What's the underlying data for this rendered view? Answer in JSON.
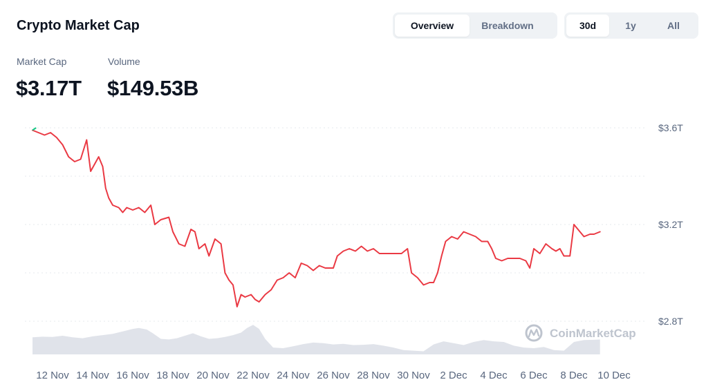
{
  "header": {
    "title": "Crypto Market Cap",
    "view_tabs": [
      {
        "label": "Overview",
        "active": true
      },
      {
        "label": "Breakdown",
        "active": false
      }
    ],
    "range_tabs": [
      {
        "label": "30d",
        "active": true
      },
      {
        "label": "1y",
        "active": false
      },
      {
        "label": "All",
        "active": false
      }
    ]
  },
  "stats": {
    "market_cap_label": "Market Cap",
    "market_cap_value": "$3.17T",
    "volume_label": "Volume",
    "volume_value": "$149.53B"
  },
  "watermark": {
    "text": "CoinMarketCap",
    "icon": "coinmarketcap-logo-icon"
  },
  "colors": {
    "line": "#ea3943",
    "line_start": "#16c784",
    "volume_fill": "#e0e3ea",
    "grid": "#e6e8ec",
    "accent_text": "#0d1421"
  },
  "chart_data": {
    "type": "line",
    "title": "",
    "xlabel": "",
    "ylabel": "",
    "x_ticks": [
      "12 Nov",
      "14 Nov",
      "16 Nov",
      "18 Nov",
      "20 Nov",
      "22 Nov",
      "24 Nov",
      "26 Nov",
      "28 Nov",
      "30 Nov",
      "2 Dec",
      "4 Dec",
      "6 Dec",
      "8 Dec",
      "10 Dec"
    ],
    "y_ticks": [
      "$3.6T",
      "$3.2T",
      "$2.8T"
    ],
    "ylim": [
      2.8,
      3.6
    ],
    "x_start": "11 Nov",
    "x_end": "11 Dec",
    "grid": true,
    "series": [
      {
        "values_trillion_usd": [
          [
            0.0,
            3.59
          ],
          [
            0.3,
            3.58
          ],
          [
            0.6,
            3.57
          ],
          [
            0.9,
            3.58
          ],
          [
            1.2,
            3.56
          ],
          [
            1.5,
            3.53
          ],
          [
            1.8,
            3.48
          ],
          [
            2.1,
            3.46
          ],
          [
            2.4,
            3.47
          ],
          [
            2.7,
            3.55
          ],
          [
            2.9,
            3.42
          ],
          [
            3.1,
            3.45
          ],
          [
            3.3,
            3.48
          ],
          [
            3.5,
            3.44
          ],
          [
            3.65,
            3.35
          ],
          [
            3.8,
            3.31
          ],
          [
            4.0,
            3.28
          ],
          [
            4.3,
            3.27
          ],
          [
            4.5,
            3.25
          ],
          [
            4.7,
            3.27
          ],
          [
            5.0,
            3.26
          ],
          [
            5.3,
            3.27
          ],
          [
            5.6,
            3.25
          ],
          [
            5.9,
            3.28
          ],
          [
            6.1,
            3.2
          ],
          [
            6.4,
            3.22
          ],
          [
            6.8,
            3.23
          ],
          [
            7.0,
            3.17
          ],
          [
            7.3,
            3.12
          ],
          [
            7.6,
            3.11
          ],
          [
            7.9,
            3.18
          ],
          [
            8.1,
            3.17
          ],
          [
            8.3,
            3.1
          ],
          [
            8.6,
            3.12
          ],
          [
            8.8,
            3.07
          ],
          [
            9.1,
            3.14
          ],
          [
            9.4,
            3.12
          ],
          [
            9.6,
            3.0
          ],
          [
            9.8,
            2.97
          ],
          [
            10.0,
            2.95
          ],
          [
            10.2,
            2.86
          ],
          [
            10.4,
            2.91
          ],
          [
            10.6,
            2.9
          ],
          [
            10.9,
            2.91
          ],
          [
            11.1,
            2.89
          ],
          [
            11.3,
            2.88
          ],
          [
            11.6,
            2.91
          ],
          [
            11.9,
            2.93
          ],
          [
            12.2,
            2.97
          ],
          [
            12.5,
            2.98
          ],
          [
            12.8,
            3.0
          ],
          [
            13.1,
            2.98
          ],
          [
            13.4,
            3.04
          ],
          [
            13.7,
            3.03
          ],
          [
            14.0,
            3.01
          ],
          [
            14.3,
            3.03
          ],
          [
            14.6,
            3.02
          ],
          [
            15.0,
            3.02
          ],
          [
            15.2,
            3.07
          ],
          [
            15.5,
            3.09
          ],
          [
            15.8,
            3.1
          ],
          [
            16.1,
            3.09
          ],
          [
            16.4,
            3.11
          ],
          [
            16.7,
            3.09
          ],
          [
            17.0,
            3.1
          ],
          [
            17.3,
            3.08
          ],
          [
            17.6,
            3.08
          ],
          [
            18.0,
            3.08
          ],
          [
            18.4,
            3.08
          ],
          [
            18.7,
            3.1
          ],
          [
            18.9,
            3.0
          ],
          [
            19.2,
            2.98
          ],
          [
            19.5,
            2.95
          ],
          [
            19.8,
            2.96
          ],
          [
            20.0,
            2.96
          ],
          [
            20.2,
            3.0
          ],
          [
            20.4,
            3.07
          ],
          [
            20.6,
            3.13
          ],
          [
            20.9,
            3.15
          ],
          [
            21.2,
            3.14
          ],
          [
            21.5,
            3.17
          ],
          [
            21.8,
            3.16
          ],
          [
            22.1,
            3.15
          ],
          [
            22.4,
            3.13
          ],
          [
            22.7,
            3.13
          ],
          [
            22.9,
            3.1
          ],
          [
            23.1,
            3.06
          ],
          [
            23.4,
            3.05
          ],
          [
            23.7,
            3.06
          ],
          [
            24.0,
            3.06
          ],
          [
            24.3,
            3.06
          ],
          [
            24.6,
            3.05
          ],
          [
            24.8,
            3.02
          ],
          [
            25.0,
            3.1
          ],
          [
            25.3,
            3.08
          ],
          [
            25.6,
            3.12
          ],
          [
            25.9,
            3.1
          ],
          [
            26.1,
            3.09
          ],
          [
            26.3,
            3.1
          ],
          [
            26.5,
            3.07
          ],
          [
            26.8,
            3.07
          ],
          [
            27.0,
            3.2
          ],
          [
            27.3,
            3.17
          ],
          [
            27.5,
            3.15
          ],
          [
            27.8,
            3.16
          ],
          [
            28.0,
            3.16
          ],
          [
            28.3,
            3.17
          ]
        ]
      }
    ],
    "volume": [
      [
        0.0,
        0.55
      ],
      [
        0.5,
        0.57
      ],
      [
        1.0,
        0.56
      ],
      [
        1.5,
        0.6
      ],
      [
        2.0,
        0.55
      ],
      [
        2.5,
        0.52
      ],
      [
        3.0,
        0.58
      ],
      [
        3.5,
        0.62
      ],
      [
        4.0,
        0.66
      ],
      [
        4.5,
        0.74
      ],
      [
        5.0,
        0.82
      ],
      [
        5.3,
        0.85
      ],
      [
        5.7,
        0.8
      ],
      [
        6.0,
        0.68
      ],
      [
        6.4,
        0.5
      ],
      [
        6.8,
        0.48
      ],
      [
        7.2,
        0.52
      ],
      [
        7.6,
        0.6
      ],
      [
        8.0,
        0.68
      ],
      [
        8.4,
        0.58
      ],
      [
        8.8,
        0.5
      ],
      [
        9.2,
        0.52
      ],
      [
        9.6,
        0.56
      ],
      [
        10.0,
        0.62
      ],
      [
        10.4,
        0.7
      ],
      [
        10.7,
        0.85
      ],
      [
        11.0,
        0.95
      ],
      [
        11.3,
        0.82
      ],
      [
        11.6,
        0.5
      ],
      [
        12.0,
        0.22
      ],
      [
        12.5,
        0.2
      ],
      [
        13.0,
        0.26
      ],
      [
        13.5,
        0.33
      ],
      [
        14.0,
        0.38
      ],
      [
        14.5,
        0.36
      ],
      [
        15.0,
        0.32
      ],
      [
        15.5,
        0.34
      ],
      [
        16.0,
        0.3
      ],
      [
        16.5,
        0.31
      ],
      [
        17.0,
        0.33
      ],
      [
        17.5,
        0.28
      ],
      [
        18.0,
        0.22
      ],
      [
        18.5,
        0.14
      ],
      [
        19.0,
        0.12
      ],
      [
        19.5,
        0.1
      ],
      [
        20.0,
        0.32
      ],
      [
        20.5,
        0.42
      ],
      [
        21.0,
        0.36
      ],
      [
        21.5,
        0.3
      ],
      [
        22.0,
        0.4
      ],
      [
        22.5,
        0.46
      ],
      [
        23.0,
        0.42
      ],
      [
        23.5,
        0.4
      ],
      [
        24.0,
        0.28
      ],
      [
        24.5,
        0.22
      ],
      [
        25.0,
        0.2
      ],
      [
        25.5,
        0.24
      ],
      [
        26.0,
        0.14
      ],
      [
        26.5,
        0.12
      ],
      [
        27.0,
        0.4
      ],
      [
        27.5,
        0.46
      ],
      [
        28.0,
        0.47
      ],
      [
        28.3,
        0.48
      ]
    ]
  }
}
